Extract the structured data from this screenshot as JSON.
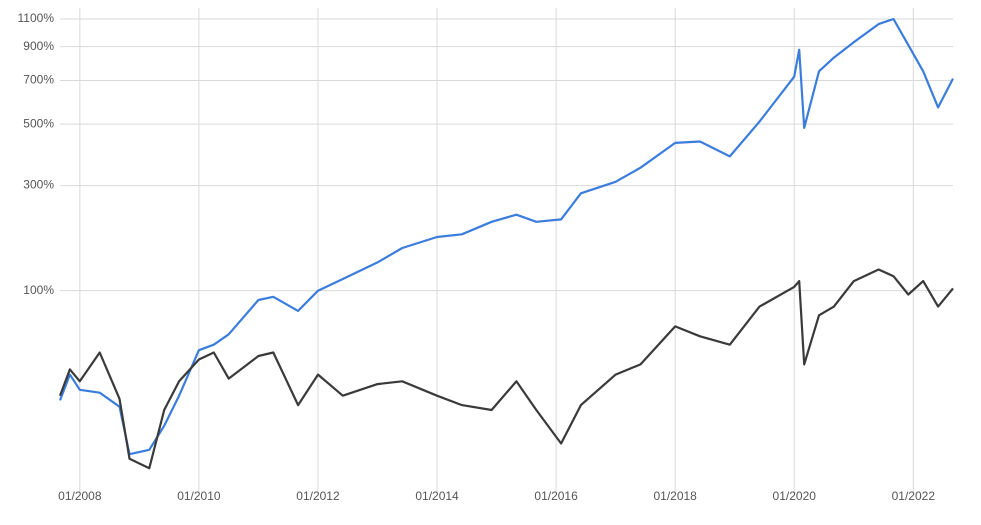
{
  "chart_data": {
    "type": "line",
    "x": [
      "2007-09",
      "2007-11",
      "2008-01",
      "2008-05",
      "2008-09",
      "2008-11",
      "2009-03",
      "2009-06",
      "2009-09",
      "2010-01",
      "2010-04",
      "2010-07",
      "2011-01",
      "2011-04",
      "2011-09",
      "2012-01",
      "2012-06",
      "2013-01",
      "2013-06",
      "2014-01",
      "2014-06",
      "2014-12",
      "2015-05",
      "2015-09",
      "2016-02",
      "2016-06",
      "2017-01",
      "2017-06",
      "2018-01",
      "2018-06",
      "2018-12",
      "2019-06",
      "2020-01",
      "2020-02",
      "2020-03",
      "2020-06",
      "2020-09",
      "2021-01",
      "2021-06",
      "2021-09",
      "2021-12",
      "2022-03",
      "2022-06",
      "2022-09"
    ],
    "series": [
      {
        "color": "#3b7ddd",
        "values": [
          -3,
          15,
          4,
          2,
          -7,
          -32,
          -30,
          -18,
          0,
          35,
          40,
          50,
          88,
          92,
          75,
          100,
          116,
          141,
          165,
          185,
          190,
          215,
          230,
          215,
          220,
          280,
          310,
          350,
          430,
          435,
          385,
          510,
          720,
          880,
          485,
          750,
          830,
          930,
          1060,
          1100,
          910,
          750,
          570,
          710
        ]
      },
      {
        "color": "#3a3a3a",
        "values": [
          0,
          19,
          10,
          33,
          -2,
          -34,
          -38,
          -9,
          10,
          27,
          33,
          12,
          30,
          33,
          -6,
          15,
          0,
          8,
          10,
          0,
          -6,
          -9,
          10,
          -9,
          -27,
          -6,
          15,
          23,
          58,
          48,
          40,
          80,
          105,
          113,
          23,
          70,
          80,
          113,
          130,
          120,
          95,
          113,
          80,
          103
        ]
      }
    ],
    "xlim": [
      "2007-09",
      "2022-09"
    ],
    "xticks": [
      {
        "value": "2008-01",
        "label": "01/2008"
      },
      {
        "value": "2010-01",
        "label": "01/2010"
      },
      {
        "value": "2012-01",
        "label": "01/2012"
      },
      {
        "value": "2014-01",
        "label": "01/2014"
      },
      {
        "value": "2016-01",
        "label": "01/2016"
      },
      {
        "value": "2018-01",
        "label": "01/2018"
      },
      {
        "value": "2020-01",
        "label": "01/2020"
      },
      {
        "value": "2022-01",
        "label": "01/2022"
      }
    ],
    "ylim": [
      -47,
      1100
    ],
    "yticks": [
      {
        "value": 100,
        "label": "100%"
      },
      {
        "value": 300,
        "label": "300%"
      },
      {
        "value": 500,
        "label": "500%"
      },
      {
        "value": 700,
        "label": "700%"
      },
      {
        "value": 900,
        "label": "900%"
      },
      {
        "value": 1100,
        "label": "1100%"
      }
    ],
    "log_scale": true,
    "grid": true
  }
}
